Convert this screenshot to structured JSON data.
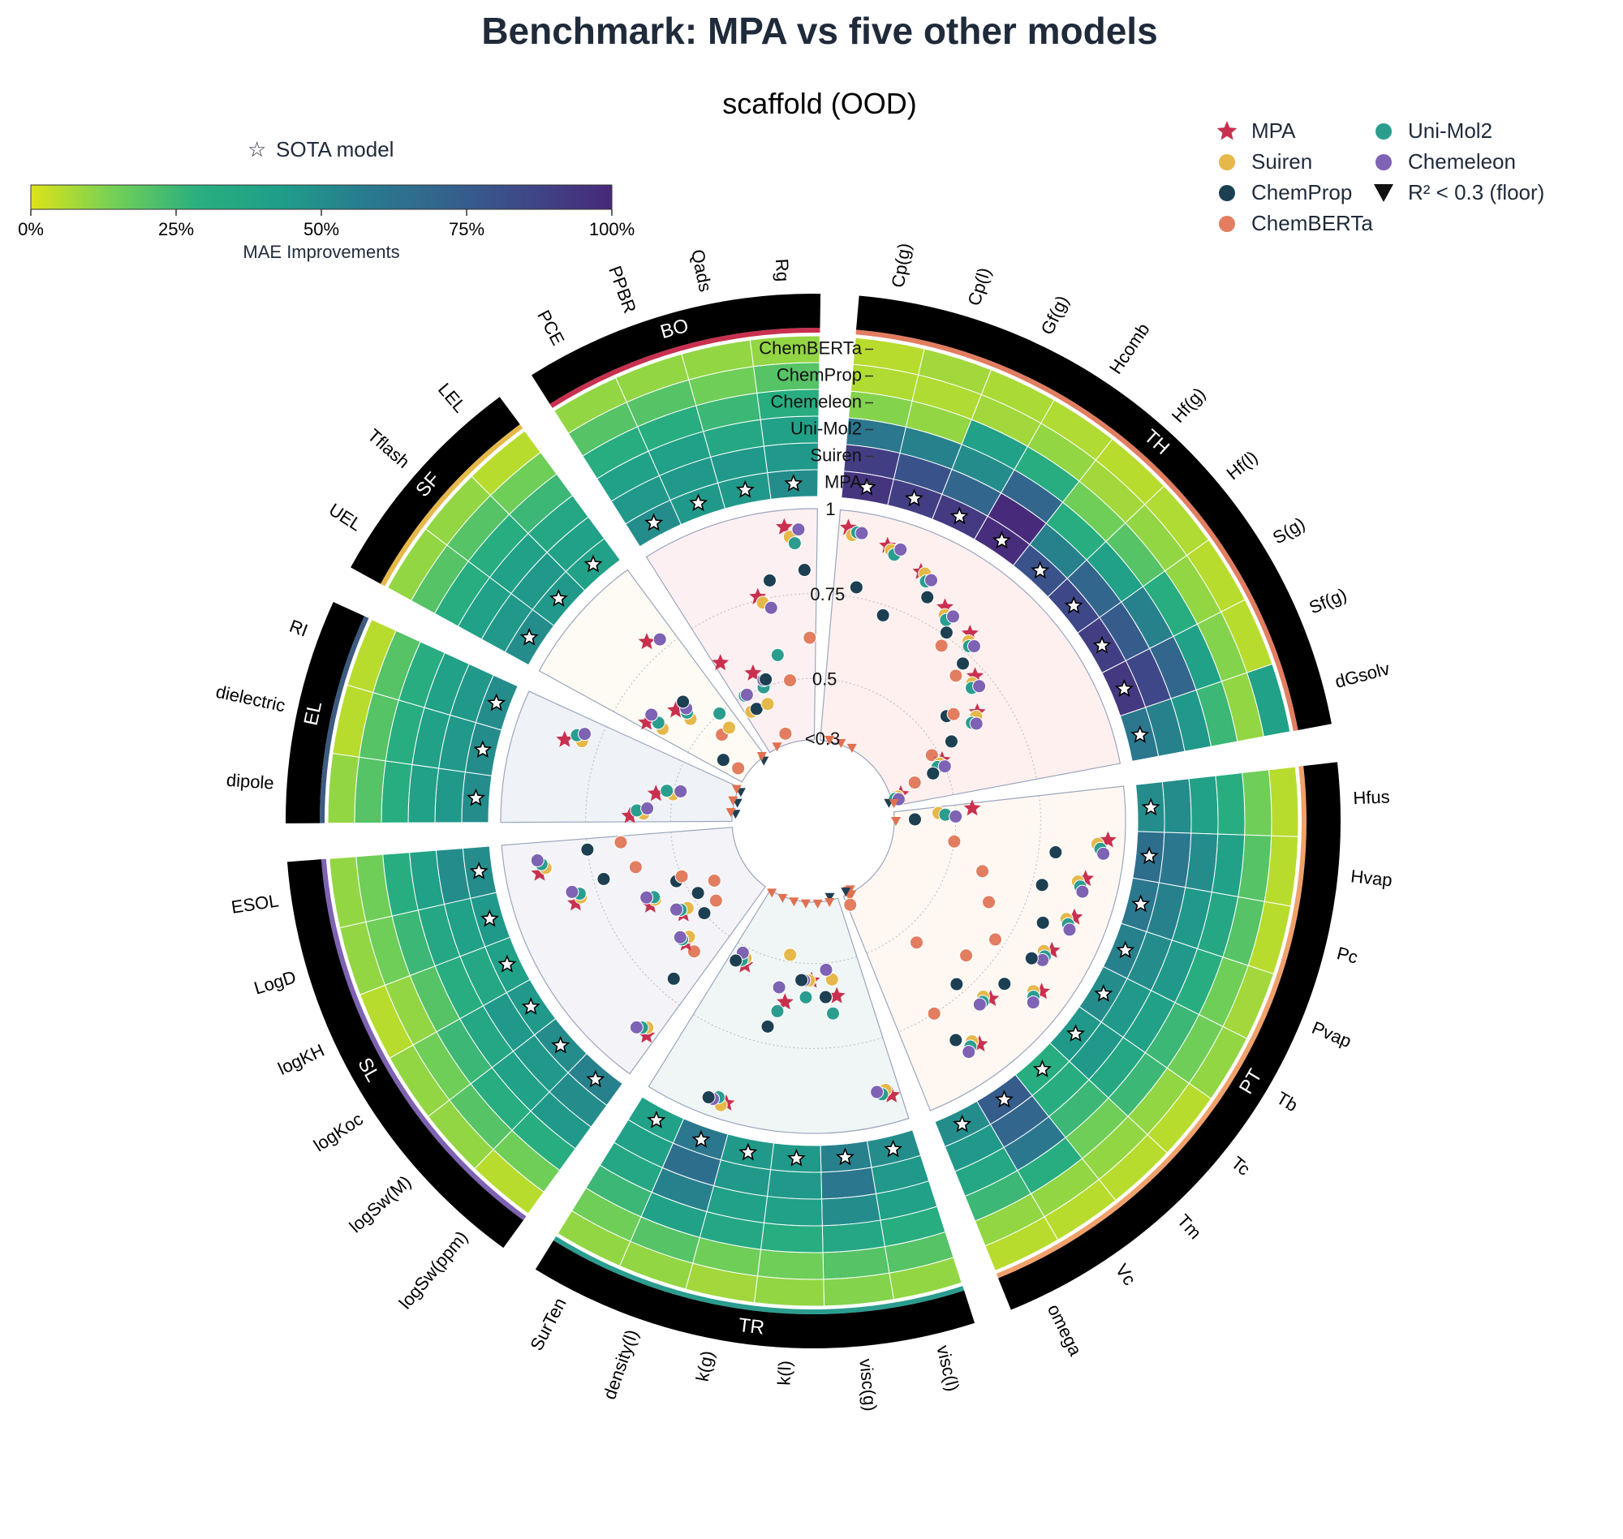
{
  "title": "Benchmark: MPA vs five other models",
  "subtitle": "scaffold (OOD)",
  "colorbar": {
    "label": "MAE Improvements",
    "ticks": [
      "0%",
      "25%",
      "50%",
      "75%",
      "100%"
    ],
    "colors": [
      "#dde318",
      "#73d056",
      "#29af7f",
      "#1f9e89",
      "#287c8e",
      "#33638d",
      "#3f4788",
      "#482979"
    ]
  },
  "sota_label": "SOTA model",
  "legend": [
    {
      "name": "MPA",
      "color": "#c9304f",
      "marker": "star"
    },
    {
      "name": "Suiren",
      "color": "#e6b84a",
      "marker": "circle"
    },
    {
      "name": "ChemProp",
      "color": "#1d3f52",
      "marker": "circle"
    },
    {
      "name": "ChemBERTa",
      "color": "#e27d60",
      "marker": "circle"
    },
    {
      "name": "Uni-Mol2",
      "color": "#2a9d8f",
      "marker": "circle"
    },
    {
      "name": "Chemeleon",
      "color": "#7e62b3",
      "marker": "circle"
    },
    {
      "name": "R² < 0.3 (floor)",
      "color": "#111111",
      "marker": "tri"
    }
  ],
  "ring_labels": [
    "ChemBERTa",
    "ChemProp",
    "Chemeleon",
    "Uni-Mol2",
    "Suiren",
    "MPA"
  ],
  "radial_ticks": [
    "<0.3",
    "0.5",
    "0.75",
    "1"
  ],
  "chart_data": {
    "type": "radial-heatmap-scatter",
    "models": [
      "MPA",
      "Suiren",
      "Uni-Mol2",
      "Chemeleon",
      "ChemProp",
      "ChemBERTa"
    ],
    "groups": [
      {
        "name": "TH",
        "color": "#e27d60",
        "bg": "#fdf0ef",
        "tasks": [
          "Cp(g)",
          "Cp(l)",
          "Gf(g)",
          "Hcomb",
          "Hf(g)",
          "Hf(l)",
          "S(g)",
          "Sf(g)",
          "dGsolv"
        ],
        "heat": [
          [
            0.95,
            0.9,
            0.6,
            0.12,
            0.06,
            0.05
          ],
          [
            0.9,
            0.8,
            0.55,
            0.1,
            0.06,
            0.08
          ],
          [
            0.92,
            0.7,
            0.5,
            0.4,
            0.08,
            0.07
          ],
          [
            0.98,
            0.99,
            0.7,
            0.3,
            0.1,
            0.06
          ],
          [
            0.8,
            0.55,
            0.3,
            0.15,
            0.08,
            0.05
          ],
          [
            0.85,
            0.7,
            0.4,
            0.2,
            0.1,
            0.06
          ],
          [
            0.9,
            0.75,
            0.55,
            0.3,
            0.1,
            0.05
          ],
          [
            0.93,
            0.85,
            0.7,
            0.4,
            0.12,
            0.05
          ],
          [
            0.6,
            0.55,
            0.45,
            0.25,
            0.1,
            0.4
          ]
        ],
        "r2": {
          "MPA": [
            0.95,
            0.92,
            0.88,
            0.82,
            0.8,
            0.72,
            0.66,
            0.5,
            0.35
          ],
          "Suiren": [
            0.93,
            0.91,
            0.88,
            0.8,
            0.78,
            0.7,
            0.65,
            0.49,
            0.34
          ],
          "Uni-Mol2": [
            0.94,
            0.9,
            0.86,
            0.79,
            0.77,
            0.69,
            0.63,
            0.48,
            0.33
          ],
          "Chemeleon": [
            0.94,
            0.92,
            0.87,
            0.81,
            0.78,
            0.71,
            0.64,
            0.5,
            0.34
          ],
          "ChemProp": [
            0.78,
            0.72,
            0.82,
            0.76,
            0.72,
            0.58,
            0.55,
            0.46,
            0.3
          ],
          "ChemBERTa": [
            0.2,
            0.2,
            0.2,
            0.72,
            0.68,
            0.6,
            0.48,
            0.4,
            0.2
          ]
        },
        "sota": [
          0,
          0,
          0,
          1,
          0,
          0,
          0,
          0,
          0
        ]
      },
      {
        "name": "PT",
        "color": "#f0a06a",
        "bg": "#fff8f2",
        "tasks": [
          "Hfus",
          "Hvap",
          "Pc",
          "Pvap",
          "Tb",
          "Tc",
          "Tm",
          "Vc",
          "omega"
        ],
        "heat": [
          [
            0.5,
            0.5,
            0.4,
            0.3,
            0.15,
            0.05
          ],
          [
            0.65,
            0.6,
            0.5,
            0.4,
            0.2,
            0.05
          ],
          [
            0.6,
            0.55,
            0.45,
            0.35,
            0.2,
            0.05
          ],
          [
            0.55,
            0.5,
            0.45,
            0.3,
            0.15,
            0.08
          ],
          [
            0.5,
            0.45,
            0.4,
            0.25,
            0.15,
            0.1
          ],
          [
            0.45,
            0.45,
            0.35,
            0.25,
            0.1,
            0.05
          ],
          [
            0.3,
            0.3,
            0.25,
            0.15,
            0.1,
            0.05
          ],
          [
            0.75,
            0.7,
            0.6,
            0.3,
            0.1,
            0.05
          ],
          [
            0.5,
            0.45,
            0.35,
            0.25,
            0.1,
            0.05
          ]
        ],
        "r2": {
          "MPA": [
            0.55,
            0.95,
            0.9,
            0.9,
            0.88,
            0.92,
            0.82,
            0.9,
            0.2
          ],
          "Suiren": [
            0.45,
            0.92,
            0.88,
            0.88,
            0.86,
            0.9,
            0.8,
            0.88,
            0.2
          ],
          "Uni-Mol2": [
            0.47,
            0.93,
            0.89,
            0.89,
            0.87,
            0.91,
            0.81,
            0.89,
            0.2
          ],
          "Chemeleon": [
            0.5,
            0.94,
            0.9,
            0.9,
            0.87,
            0.92,
            0.81,
            0.9,
            0.2
          ],
          "ChemProp": [
            0.38,
            0.8,
            0.78,
            0.82,
            0.84,
            0.82,
            0.72,
            0.85,
            0.3
          ],
          "ChemBERTa": [
            0.3,
            0.5,
            0.6,
            0.65,
            0.72,
            0.68,
            0.55,
            0.75,
            0.35
          ]
        },
        "sota": [
          0,
          0,
          0,
          0,
          0,
          0,
          0,
          0,
          0
        ]
      },
      {
        "name": "TR",
        "color": "#2a9d8f",
        "bg": "#eff6f5",
        "tasks": [
          "visc(l)",
          "visc(g)",
          "k(l)",
          "k(g)",
          "density(l)",
          "SurTen"
        ],
        "heat": [
          [
            0.5,
            0.45,
            0.4,
            0.3,
            0.2,
            0.1
          ],
          [
            0.55,
            0.6,
            0.5,
            0.35,
            0.2,
            0.12
          ],
          [
            0.45,
            0.45,
            0.4,
            0.3,
            0.15,
            0.1
          ],
          [
            0.45,
            0.45,
            0.4,
            0.35,
            0.15,
            0.08
          ],
          [
            0.6,
            0.65,
            0.55,
            0.4,
            0.2,
            0.1
          ],
          [
            0.4,
            0.4,
            0.35,
            0.25,
            0.15,
            0.1
          ]
        ],
        "r2": {
          "MPA": [
            0.92,
            0.6,
            0.55,
            0.62,
            0.95,
            0.55
          ],
          "Suiren": [
            0.9,
            0.55,
            0.55,
            0.48,
            0.96,
            0.53
          ],
          "Uni-Mol2": [
            0.91,
            0.65,
            0.6,
            0.65,
            0.94,
            0.54
          ],
          "Chemeleon": [
            0.9,
            0.52,
            0.55,
            0.58,
            0.95,
            0.52
          ],
          "ChemProp": [
            0.2,
            0.6,
            0.55,
            0.7,
            0.95,
            0.55
          ],
          "ChemBERTa": [
            0.2,
            0.2,
            0.2,
            0.2,
            0.2,
            0.2
          ]
        },
        "sota": [
          0,
          0,
          0,
          0,
          0,
          0
        ]
      },
      {
        "name": "SL",
        "color": "#7e62b3",
        "bg": "#f4f3f8",
        "tasks": [
          "logSw(ppm)",
          "logSw(M)",
          "logKoc",
          "logKH",
          "LogD",
          "ESOL"
        ],
        "heat": [
          [
            0.55,
            0.5,
            0.45,
            0.3,
            0.15,
            0.05
          ],
          [
            0.5,
            0.45,
            0.4,
            0.3,
            0.2,
            0.1
          ],
          [
            0.45,
            0.45,
            0.35,
            0.25,
            0.15,
            0.1
          ],
          [
            0.4,
            0.35,
            0.3,
            0.2,
            0.1,
            0.05
          ],
          [
            0.45,
            0.4,
            0.35,
            0.25,
            0.15,
            0.1
          ],
          [
            0.5,
            0.5,
            0.4,
            0.3,
            0.15,
            0.1
          ]
        ],
        "r2": {
          "MPA": [
            0.88,
            0.6,
            0.55,
            0.62,
            0.82,
            0.9
          ],
          "Suiren": [
            0.86,
            0.58,
            0.53,
            0.6,
            0.8,
            0.88
          ],
          "Uni-Mol2": [
            0.87,
            0.6,
            0.55,
            0.6,
            0.8,
            0.89
          ],
          "Chemeleon": [
            0.88,
            0.6,
            0.56,
            0.62,
            0.82,
            0.9
          ],
          "ChemProp": [
            0.7,
            0.5,
            0.48,
            0.52,
            0.72,
            0.75
          ],
          "ChemBERTa": [
            0.6,
            0.45,
            0.42,
            0.5,
            0.62,
            0.65
          ]
        },
        "sota": [
          0,
          0,
          0,
          0,
          0,
          0
        ]
      },
      {
        "name": "EL",
        "color": "#3d5a80",
        "bg": "#eff2f6",
        "tasks": [
          "dipole",
          "dielectric",
          "RI"
        ],
        "heat": [
          [
            0.5,
            0.45,
            0.4,
            0.3,
            0.2,
            0.1
          ],
          [
            0.5,
            0.45,
            0.4,
            0.3,
            0.2,
            0.05
          ],
          [
            0.5,
            0.45,
            0.4,
            0.3,
            0.2,
            0.05
          ]
        ],
        "r2": {
          "MPA": [
            0.62,
            0.55,
            0.85
          ],
          "Suiren": [
            0.58,
            0.5,
            0.8
          ],
          "Uni-Mol2": [
            0.6,
            0.52,
            0.82
          ],
          "Chemeleon": [
            0.57,
            0.48,
            0.8
          ],
          "ChemProp": [
            0.25,
            0.25,
            0.25
          ],
          "ChemBERTa": [
            0.3,
            0.3,
            0.3
          ]
        },
        "sota": [
          0,
          0,
          0
        ]
      },
      {
        "name": "SF",
        "color": "#e6b84a",
        "bg": "#fdfbf3",
        "tasks": [
          "UEL",
          "Tflash",
          "LEL"
        ],
        "heat": [
          [
            0.5,
            0.45,
            0.4,
            0.3,
            0.2,
            0.1
          ],
          [
            0.45,
            0.45,
            0.4,
            0.3,
            0.2,
            0.1
          ],
          [
            0.4,
            0.4,
            0.35,
            0.25,
            0.15,
            0.05
          ]
        ],
        "r2": {
          "MPA": [
            0.65,
            0.6,
            0.8
          ],
          "Suiren": [
            0.6,
            0.55,
            0.45
          ],
          "Uni-Mol2": [
            0.62,
            0.57,
            0.5
          ],
          "Chemeleon": [
            0.65,
            0.58,
            0.78
          ],
          "ChemProp": [
            0.4,
            0.6,
            0.3
          ],
          "ChemBERTa": [
            0.35,
            0.45,
            0.2
          ]
        },
        "sota": [
          0,
          0,
          0
        ]
      },
      {
        "name": "BO",
        "color": "#c9304f",
        "bg": "#fdf0f2",
        "tasks": [
          "PCE",
          "PPBR",
          "Qads",
          "Rg"
        ],
        "heat": [
          [
            0.5,
            0.45,
            0.4,
            0.3,
            0.2,
            0.1
          ],
          [
            0.45,
            0.45,
            0.4,
            0.3,
            0.2,
            0.1
          ],
          [
            0.45,
            0.45,
            0.35,
            0.25,
            0.15,
            0.1
          ],
          [
            0.5,
            0.45,
            0.4,
            0.3,
            0.2,
            0.1
          ]
        ],
        "r2": {
          "MPA": [
            0.62,
            0.55,
            0.76,
            0.95
          ],
          "Suiren": [
            0.45,
            0.45,
            0.74,
            0.92
          ],
          "Uni-Mol2": [
            0.5,
            0.5,
            0.58,
            0.9
          ],
          "Chemeleon": [
            0.5,
            0.52,
            0.72,
            0.94
          ],
          "ChemProp": [
            0.45,
            0.52,
            0.8,
            0.82
          ],
          "ChemBERTa": [
            0.3,
            0.35,
            0.5,
            0.62
          ]
        },
        "sota": [
          0,
          0,
          0,
          0
        ]
      }
    ]
  }
}
